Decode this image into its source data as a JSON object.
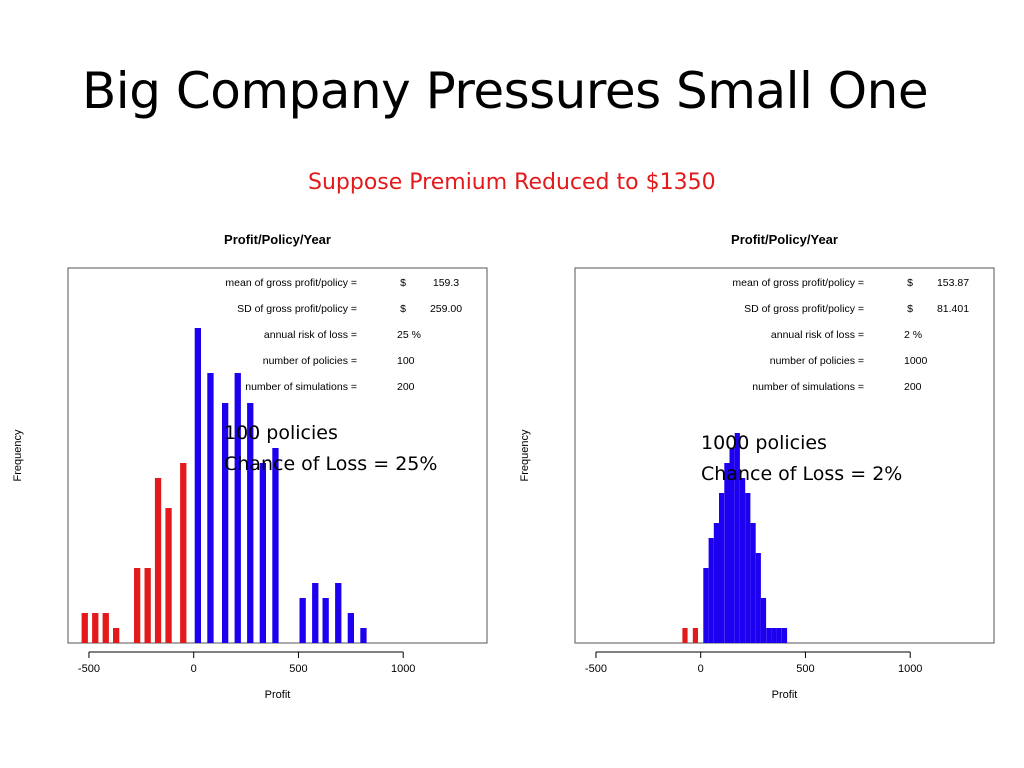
{
  "slide": {
    "title": "Big Company Pressures Small One",
    "subtitle": "Suppose Premium Reduced to $1350"
  },
  "colors": {
    "loss": "#e31a1c",
    "profit": "#1d00f0",
    "subtitle": "#e31a1c"
  },
  "chart_data": [
    {
      "type": "bar",
      "title": "Profit/Policy/Year",
      "xlabel": "Profit",
      "ylabel": "Frequency",
      "xlim": [
        -600,
        1400
      ],
      "xticks": [
        -500,
        0,
        500,
        1000
      ],
      "ylim": [
        0,
        25
      ],
      "bar_width": 30,
      "stats": [
        {
          "label": "mean of gross profit/policy =",
          "unit": "$",
          "value": "159.3"
        },
        {
          "label": "SD of gross profit/policy =",
          "unit": "$",
          "value": "259.00"
        },
        {
          "label": "annual risk of loss =",
          "unit": "",
          "value": "25  %"
        },
        {
          "label": "number of policies =",
          "unit": "",
          "value": "100"
        },
        {
          "label": "number of simulations =",
          "unit": "",
          "value": "200"
        }
      ],
      "note": [
        "100 policies",
        "Chance of Loss = 25%"
      ],
      "series": [
        {
          "name": "loss",
          "x": [
            -520,
            -470,
            -420,
            -370,
            -270,
            -220,
            -170,
            -120,
            -50
          ],
          "values": [
            2,
            2,
            2,
            1,
            5,
            5,
            11,
            9,
            12
          ]
        },
        {
          "name": "profit",
          "x": [
            20,
            80,
            150,
            210,
            270,
            330,
            390,
            520,
            580,
            630,
            690,
            750,
            810
          ],
          "values": [
            21,
            18,
            16,
            18,
            16,
            12,
            13,
            3,
            4,
            3,
            4,
            2,
            1
          ]
        }
      ]
    },
    {
      "type": "bar",
      "title": "Profit/Policy/Year",
      "xlabel": "Profit",
      "ylabel": "Frequency",
      "xlim": [
        -600,
        1400
      ],
      "xticks": [
        -500,
        0,
        500,
        1000
      ],
      "ylim": [
        0,
        25
      ],
      "bar_width": 25,
      "stats": [
        {
          "label": "mean of gross profit/policy =",
          "unit": "$",
          "value": "153.87"
        },
        {
          "label": "SD of gross profit/policy =",
          "unit": "$",
          "value": "81.401"
        },
        {
          "label": "annual risk of loss =",
          "unit": "",
          "value": "2   %"
        },
        {
          "label": "number of policies =",
          "unit": "",
          "value": "1000"
        },
        {
          "label": "number of simulations =",
          "unit": "",
          "value": "200"
        }
      ],
      "note": [
        "1000 policies",
        "Chance of Loss = 2%"
      ],
      "series": [
        {
          "name": "loss",
          "x": [
            -75,
            -25
          ],
          "values": [
            1,
            1
          ]
        },
        {
          "name": "profit",
          "x": [
            25,
            50,
            75,
            100,
            125,
            150,
            175,
            200,
            225,
            250,
            275,
            300,
            325,
            350,
            375,
            400
          ],
          "values": [
            5,
            7,
            8,
            10,
            12,
            13,
            14,
            11,
            10,
            8,
            6,
            3,
            1,
            1,
            1,
            1
          ]
        }
      ]
    }
  ]
}
